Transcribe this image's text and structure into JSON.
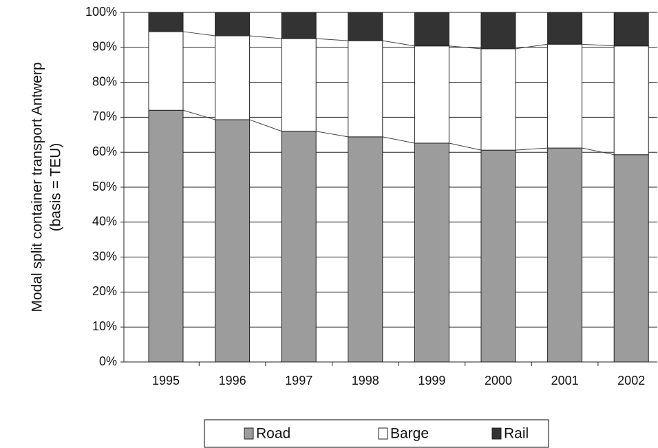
{
  "chart_data": {
    "type": "stacked_bar",
    "ylabel": [
      "Modal split container transport Antwerp",
      "(basis = TEU)"
    ],
    "categories": [
      "1995",
      "1996",
      "1997",
      "1998",
      "1999",
      "2000",
      "2001",
      "2002"
    ],
    "series": [
      {
        "name": "Road",
        "color": "#9c9c9c",
        "values": [
          72.0,
          69.3,
          66.0,
          64.4,
          62.6,
          60.6,
          61.2,
          59.3
        ]
      },
      {
        "name": "Barge",
        "color": "#ffffff",
        "values": [
          22.5,
          24.0,
          26.5,
          27.5,
          27.8,
          29.0,
          29.7,
          31.1
        ]
      },
      {
        "name": "Rail",
        "color": "#333333",
        "values": [
          5.5,
          6.7,
          7.5,
          8.1,
          9.6,
          10.4,
          9.1,
          9.6
        ]
      }
    ],
    "ylim": [
      0,
      100
    ],
    "yticks": [
      {
        "value": 0,
        "label": "0%"
      },
      {
        "value": 10,
        "label": "10%"
      },
      {
        "value": 20,
        "label": "20%"
      },
      {
        "value": 30,
        "label": "30%"
      },
      {
        "value": 40,
        "label": "40%"
      },
      {
        "value": 50,
        "label": "50%"
      },
      {
        "value": 60,
        "label": "60%"
      },
      {
        "value": 70,
        "label": "70%"
      },
      {
        "value": 80,
        "label": "80%"
      },
      {
        "value": 90,
        "label": "90%"
      },
      {
        "value": 100,
        "label": "100%"
      }
    ],
    "grid": true,
    "legend": "bottom"
  }
}
